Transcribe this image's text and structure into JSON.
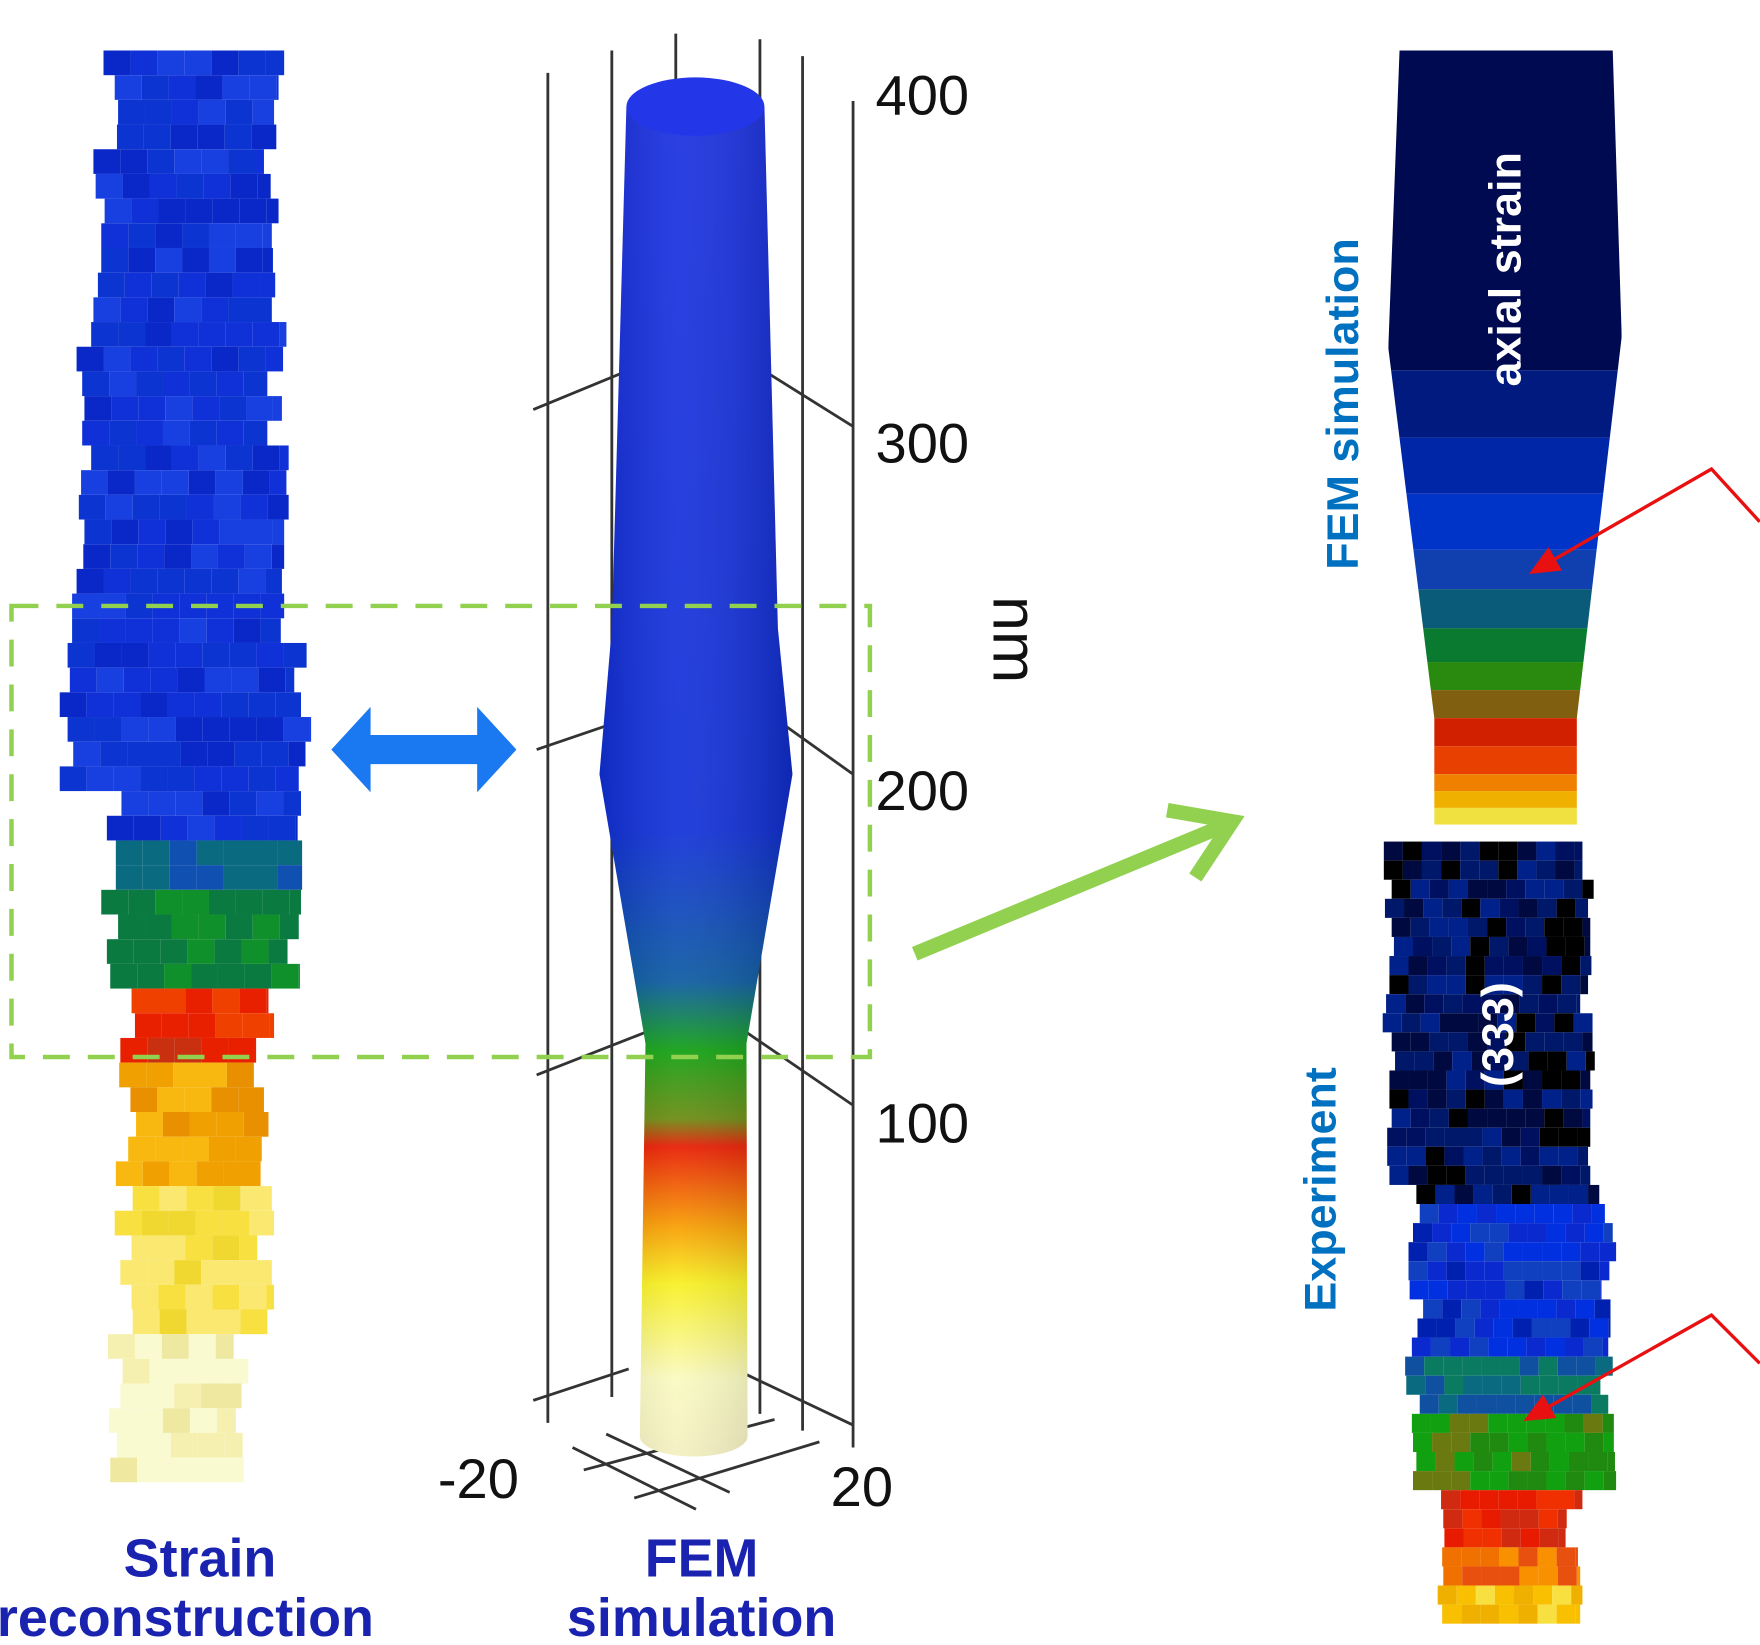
{
  "figure": {
    "axis": {
      "ticks": [
        "400",
        "300",
        "200",
        "100"
      ],
      "unit": "nm",
      "base_ticks": [
        "-20",
        "20"
      ]
    },
    "left_caption": [
      "Strain",
      "reconstruction"
    ],
    "middle_caption": [
      "FEM",
      "simulation"
    ],
    "top_panel": {
      "side_label": "FEM simulation",
      "inner_label": "axial strain"
    },
    "bottom_panel": {
      "side_label": "Experiment",
      "inner_label": "(333)"
    }
  }
}
